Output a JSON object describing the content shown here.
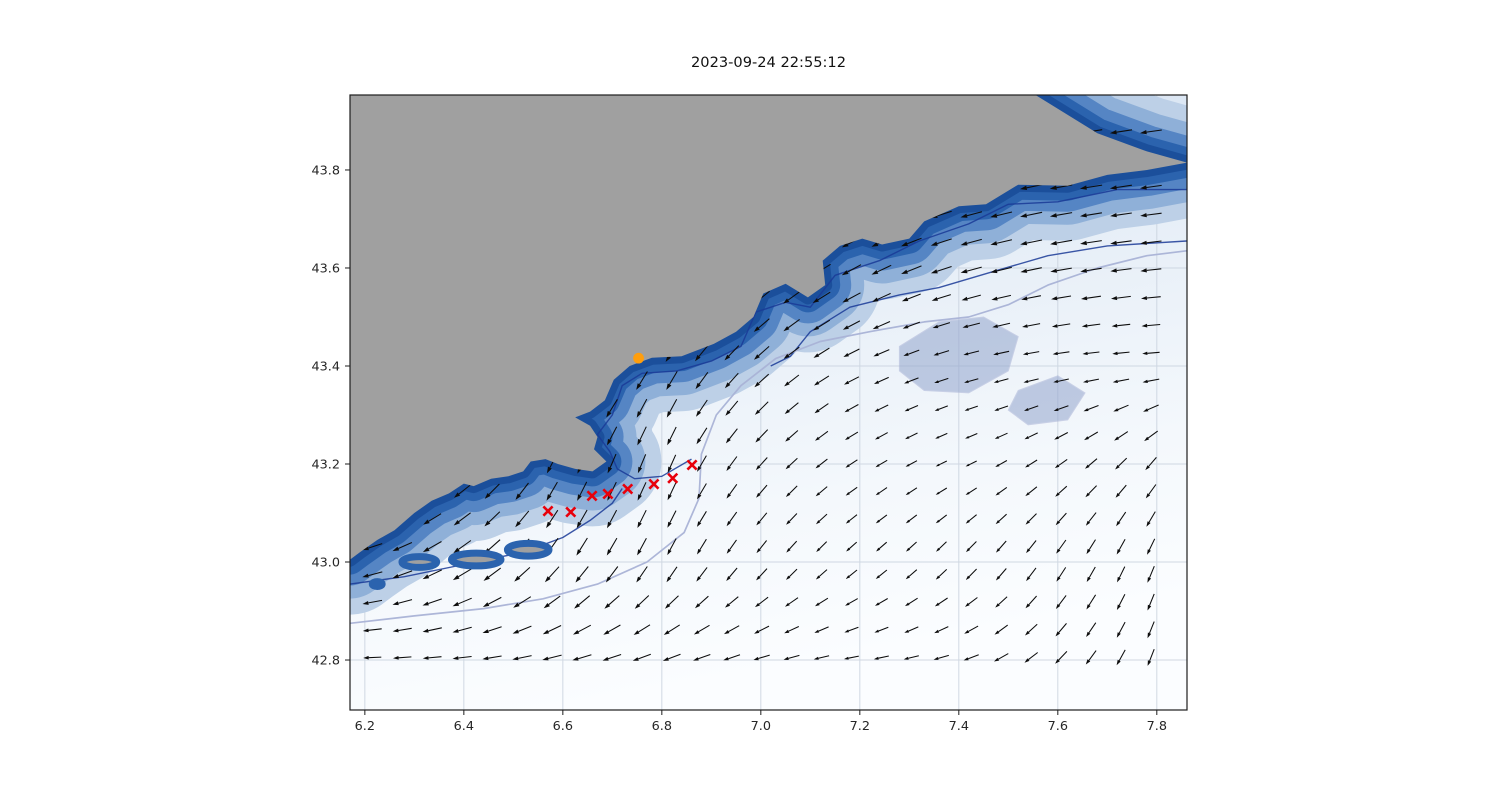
{
  "chart_data": {
    "type": "map-quiver",
    "title": "2023-09-24 22:55:12",
    "projection": "lon-lat",
    "xlim": [
      6.17,
      7.861
    ],
    "ylim": [
      42.698,
      43.953
    ],
    "xticks": [
      6.2,
      6.4,
      6.6,
      6.8,
      7.0,
      7.2,
      7.4,
      7.6,
      7.8
    ],
    "xtick_labels": [
      "6.2",
      "6.4",
      "6.6",
      "6.8",
      "7.0",
      "7.2",
      "7.4",
      "7.6",
      "7.8"
    ],
    "yticks": [
      42.8,
      43.0,
      43.2,
      43.4,
      43.6,
      43.8
    ],
    "ytick_labels": [
      "42.8",
      "43.0",
      "43.2",
      "43.4",
      "43.6",
      "43.8"
    ],
    "grid": true,
    "legend": "none",
    "colors": {
      "land": "#a0a0a0",
      "ocean_stops": [
        [
          "0",
          "#cddcee"
        ],
        [
          "0.4",
          "#e6eef7"
        ],
        [
          "0.75",
          "#f4f8fc"
        ],
        [
          "1",
          "#fbfdff"
        ]
      ],
      "fringe": [
        [
          110,
          "#bdd0e7"
        ],
        [
          78,
          "#8fb0d8"
        ],
        [
          52,
          "#5585c4"
        ],
        [
          30,
          "#2b63ae"
        ],
        [
          14,
          "#1b4f9b"
        ]
      ],
      "contour_navy": "#1a3a96",
      "contour_lavender": "#a9b2d6",
      "patch_lavender": "#93a5cd",
      "arrow": "#0d0d0d",
      "track": "#e8000b",
      "point": "#ff9e0d",
      "grid_line": "#c9d2de",
      "frame": "#1d1d1d",
      "text": "#262626"
    },
    "land_polygon": [
      [
        6.17,
        43.953
      ],
      [
        7.555,
        43.953
      ],
      [
        7.68,
        43.875
      ],
      [
        7.78,
        43.838
      ],
      [
        7.861,
        43.815
      ],
      [
        7.78,
        43.8
      ],
      [
        7.7,
        43.79
      ],
      [
        7.62,
        43.768
      ],
      [
        7.52,
        43.77
      ],
      [
        7.455,
        43.73
      ],
      [
        7.4,
        43.726
      ],
      [
        7.33,
        43.695
      ],
      [
        7.3,
        43.66
      ],
      [
        7.245,
        43.648
      ],
      [
        7.205,
        43.66
      ],
      [
        7.16,
        43.645
      ],
      [
        7.125,
        43.615
      ],
      [
        7.13,
        43.565
      ],
      [
        7.095,
        43.54
      ],
      [
        7.05,
        43.568
      ],
      [
        7.005,
        43.548
      ],
      [
        6.985,
        43.5
      ],
      [
        6.95,
        43.47
      ],
      [
        6.905,
        43.445
      ],
      [
        6.84,
        43.42
      ],
      [
        6.78,
        43.417
      ],
      [
        6.735,
        43.4
      ],
      [
        6.703,
        43.372
      ],
      [
        6.685,
        43.33
      ],
      [
        6.655,
        43.307
      ],
      [
        6.625,
        43.295
      ],
      [
        6.655,
        43.278
      ],
      [
        6.67,
        43.255
      ],
      [
        6.663,
        43.23
      ],
      [
        6.688,
        43.205
      ],
      [
        6.66,
        43.185
      ],
      [
        6.625,
        43.19
      ],
      [
        6.59,
        43.2
      ],
      [
        6.565,
        43.21
      ],
      [
        6.535,
        43.205
      ],
      [
        6.52,
        43.185
      ],
      [
        6.49,
        43.175
      ],
      [
        6.455,
        43.17
      ],
      [
        6.42,
        43.155
      ],
      [
        6.4,
        43.16
      ],
      [
        6.37,
        43.14
      ],
      [
        6.335,
        43.125
      ],
      [
        6.3,
        43.1
      ],
      [
        6.26,
        43.065
      ],
      [
        6.225,
        43.045
      ],
      [
        6.19,
        43.02
      ],
      [
        6.17,
        43.005
      ]
    ],
    "islands": [
      [
        6.31,
        43.0,
        0.035,
        0.011
      ],
      [
        6.425,
        43.005,
        0.05,
        0.013
      ],
      [
        6.53,
        43.025,
        0.042,
        0.013
      ],
      [
        6.225,
        42.955,
        0.01,
        0.005
      ]
    ],
    "contours": {
      "navy": [
        [
          [
            7.86,
            43.76
          ],
          [
            7.72,
            43.76
          ],
          [
            7.6,
            43.735
          ],
          [
            7.5,
            43.73
          ],
          [
            7.42,
            43.69
          ],
          [
            7.32,
            43.655
          ],
          [
            7.24,
            43.615
          ],
          [
            7.15,
            43.585
          ],
          [
            7.1,
            43.52
          ],
          [
            7.05,
            43.53
          ],
          [
            6.99,
            43.51
          ],
          [
            6.96,
            43.44
          ],
          [
            6.9,
            43.41
          ],
          [
            6.83,
            43.39
          ],
          [
            6.76,
            43.385
          ],
          [
            6.72,
            43.36
          ],
          [
            6.7,
            43.3
          ],
          [
            6.67,
            43.26
          ],
          [
            6.695,
            43.225
          ],
          [
            6.71,
            43.19
          ],
          [
            6.745,
            43.17
          ],
          [
            6.8,
            43.175
          ],
          [
            6.86,
            43.21
          ]
        ],
        [
          [
            7.86,
            43.655
          ],
          [
            7.7,
            43.645
          ],
          [
            7.58,
            43.625
          ],
          [
            7.46,
            43.59
          ],
          [
            7.36,
            43.56
          ],
          [
            7.28,
            43.545
          ],
          [
            7.18,
            43.52
          ],
          [
            7.1,
            43.47
          ],
          [
            7.06,
            43.42
          ],
          [
            7.02,
            43.4
          ]
        ],
        [
          [
            6.17,
            42.955
          ],
          [
            6.28,
            42.97
          ],
          [
            6.4,
            42.995
          ],
          [
            6.52,
            43.02
          ],
          [
            6.6,
            43.05
          ],
          [
            6.655,
            43.085
          ],
          [
            6.7,
            43.12
          ],
          [
            6.72,
            43.15
          ]
        ]
      ],
      "lavender": [
        [
          6.17,
          42.875
        ],
        [
          6.3,
          42.89
        ],
        [
          6.44,
          42.905
        ],
        [
          6.56,
          42.925
        ],
        [
          6.67,
          42.955
        ],
        [
          6.77,
          43.0
        ],
        [
          6.845,
          43.06
        ],
        [
          6.875,
          43.13
        ],
        [
          6.88,
          43.22
        ],
        [
          6.91,
          43.3
        ],
        [
          6.96,
          43.36
        ],
        [
          7.03,
          43.415
        ],
        [
          7.12,
          43.45
        ],
        [
          7.22,
          43.47
        ],
        [
          7.33,
          43.49
        ],
        [
          7.42,
          43.5
        ],
        [
          7.5,
          43.525
        ],
        [
          7.58,
          43.565
        ],
        [
          7.68,
          43.6
        ],
        [
          7.78,
          43.625
        ],
        [
          7.86,
          43.635
        ]
      ]
    },
    "patches_lavender": [
      [
        [
          7.28,
          43.44
        ],
        [
          7.36,
          43.49
        ],
        [
          7.45,
          43.5
        ],
        [
          7.52,
          43.46
        ],
        [
          7.5,
          43.39
        ],
        [
          7.42,
          43.345
        ],
        [
          7.33,
          43.35
        ],
        [
          7.28,
          43.39
        ]
      ],
      [
        [
          7.52,
          43.35
        ],
        [
          7.6,
          43.38
        ],
        [
          7.655,
          43.345
        ],
        [
          7.62,
          43.29
        ],
        [
          7.54,
          43.28
        ],
        [
          7.5,
          43.31
        ]
      ]
    ],
    "flow_grid": {
      "description": "Surface current direction/speed field; southwestward alongshore current strongest near coast, weaker offshore",
      "lons": [
        6.2,
        6.4,
        6.6,
        6.8,
        7.0,
        7.2,
        7.4,
        7.6,
        7.8
      ],
      "lats": [
        42.8,
        43.0,
        43.2,
        43.4,
        43.6,
        43.8
      ],
      "angles_deg": [
        [
          182,
          186,
          194,
          200,
          196,
          190,
          196,
          225,
          250
        ],
        [
          195,
          215,
          235,
          242,
          232,
          222,
          228,
          238,
          248
        ],
        [
          205,
          220,
          245,
          248,
          228,
          212,
          205,
          215,
          230
        ],
        [
          210,
          215,
          225,
          240,
          222,
          205,
          195,
          188,
          184
        ],
        [
          205,
          205,
          210,
          215,
          218,
          208,
          196,
          190,
          186
        ],
        [
          200,
          200,
          205,
          210,
          215,
          205,
          195,
          190,
          188
        ]
      ],
      "speeds": [
        [
          0.6,
          0.65,
          0.7,
          0.65,
          0.55,
          0.45,
          0.5,
          0.55,
          0.6
        ],
        [
          0.75,
          0.8,
          0.75,
          0.65,
          0.5,
          0.4,
          0.45,
          0.55,
          0.6
        ],
        [
          0.7,
          0.7,
          0.8,
          0.7,
          0.55,
          0.4,
          0.3,
          0.45,
          0.55
        ],
        [
          0.7,
          0.7,
          0.75,
          0.8,
          0.7,
          0.55,
          0.45,
          0.5,
          0.55
        ],
        [
          0.7,
          0.7,
          0.7,
          0.7,
          0.75,
          0.8,
          0.8,
          0.8,
          0.75
        ],
        [
          0.7,
          0.7,
          0.7,
          0.7,
          0.7,
          0.75,
          0.8,
          0.85,
          0.8
        ]
      ]
    },
    "quiver_grid": {
      "lon_start": 6.215,
      "lon_step": 0.0605,
      "cols": 27,
      "lat_start": 42.805,
      "lat_step": 0.0565,
      "rows": 20
    },
    "track_markers": {
      "marker": "x",
      "points": [
        [
          6.57,
          43.104
        ],
        [
          6.616,
          43.102
        ],
        [
          6.659,
          43.135
        ],
        [
          6.691,
          43.139
        ],
        [
          6.731,
          43.149
        ],
        [
          6.784,
          43.159
        ],
        [
          6.822,
          43.171
        ],
        [
          6.861,
          43.198
        ]
      ]
    },
    "point_marker": {
      "marker": "circle",
      "lon": 6.753,
      "lat": 43.416
    }
  }
}
